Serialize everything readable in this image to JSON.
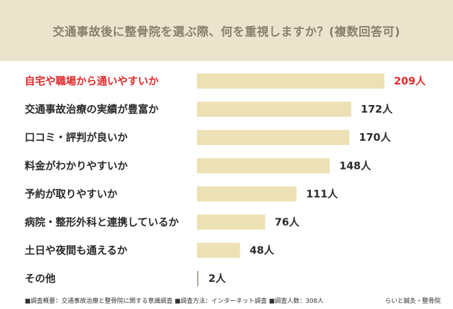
{
  "chart_data": {
    "type": "bar",
    "orientation": "horizontal",
    "title": "交通事故後に整骨院を選ぶ際、何を重視しますか？(複数回答可)",
    "categories": [
      "自宅や職場から通いやすいか",
      "交通事故治療の実績が豊富か",
      "口コミ・評判が良いか",
      "料金がわかりやすいか",
      "予約が取りやすいか",
      "病院・整形外科と連携しているか",
      "土日や夜間も通えるか",
      "その他"
    ],
    "values": [
      209,
      172,
      170,
      148,
      111,
      76,
      48,
      2
    ],
    "value_labels": [
      "209人",
      "172人",
      "170人",
      "148人",
      "111人",
      "76人",
      "48人",
      "2人"
    ],
    "highlight_index": 0,
    "xlim": [
      0,
      209
    ],
    "grid": false,
    "legend": "none",
    "colors": {
      "bar": "#ece0b5",
      "highlight_text": "#e02a2a",
      "text": "#2a2a2a",
      "title_band": "#ece3cd",
      "title_text": "#8a7f6c",
      "axis_line": "#aaaaaa"
    }
  },
  "footer": {
    "note": "■調査概要：交通事故治療と整骨院に関する意識調査 ■調査方法：インターネット調査 ■調査人数：308人",
    "credit": "らいと鍼灸・整骨院"
  }
}
